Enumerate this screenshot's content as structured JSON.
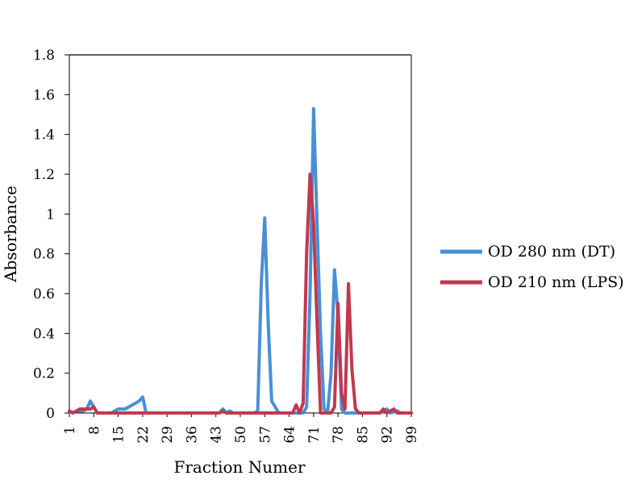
{
  "chart_data": {
    "type": "line",
    "title": "",
    "xlabel": "Fraction Numer",
    "ylabel": "Absorbance",
    "xlim": [
      1,
      99
    ],
    "ylim": [
      0,
      1.8
    ],
    "grid": false,
    "legend_position": "right",
    "x_ticks": [
      "1",
      "8",
      "15",
      "22",
      "29",
      "36",
      "43",
      "50",
      "57",
      "64",
      "71",
      "78",
      "85",
      "92",
      "99"
    ],
    "y_ticks": [
      "0",
      "0.2",
      "0.4",
      "0.6",
      "0.8",
      "1",
      "1.2",
      "1.4",
      "1.6",
      "1.8"
    ],
    "series": [
      {
        "name": "OD 280 nm (DT)",
        "color": "#4a8fd6",
        "points": [
          [
            1,
            0.01
          ],
          [
            2,
            0
          ],
          [
            3,
            0.01
          ],
          [
            4,
            0.01
          ],
          [
            5,
            0.01
          ],
          [
            6,
            0.02
          ],
          [
            7,
            0.06
          ],
          [
            8,
            0.03
          ],
          [
            9,
            0
          ],
          [
            10,
            0
          ],
          [
            11,
            0
          ],
          [
            12,
            0
          ],
          [
            13,
            0
          ],
          [
            14,
            0.01
          ],
          [
            15,
            0.02
          ],
          [
            16,
            0.02
          ],
          [
            17,
            0.02
          ],
          [
            18,
            0.03
          ],
          [
            19,
            0.04
          ],
          [
            20,
            0.05
          ],
          [
            21,
            0.06
          ],
          [
            22,
            0.08
          ],
          [
            23,
            0
          ],
          [
            24,
            0
          ],
          [
            30,
            0
          ],
          [
            40,
            0
          ],
          [
            44,
            0
          ],
          [
            45,
            0.02
          ],
          [
            46,
            0
          ],
          [
            47,
            0.01
          ],
          [
            48,
            0
          ],
          [
            54,
            0
          ],
          [
            55,
            0.01
          ],
          [
            56,
            0.65
          ],
          [
            57,
            0.98
          ],
          [
            58,
            0.45
          ],
          [
            59,
            0.06
          ],
          [
            60,
            0.03
          ],
          [
            61,
            0
          ],
          [
            68,
            0
          ],
          [
            69,
            0.03
          ],
          [
            70,
            0.6
          ],
          [
            71,
            1.53
          ],
          [
            72,
            0.95
          ],
          [
            73,
            0.4
          ],
          [
            74,
            0.02
          ],
          [
            75,
            0
          ],
          [
            76,
            0.2
          ],
          [
            77,
            0.72
          ],
          [
            78,
            0.5
          ],
          [
            79,
            0.02
          ],
          [
            80,
            0
          ],
          [
            86,
            0
          ],
          [
            90,
            0
          ],
          [
            92,
            0.02
          ],
          [
            93,
            0
          ],
          [
            95,
            0.01
          ],
          [
            96,
            0
          ],
          [
            99,
            0
          ]
        ]
      },
      {
        "name": "OD 210 nm (LPS)",
        "color": "#c0394f",
        "points": [
          [
            1,
            0.01
          ],
          [
            2,
            0
          ],
          [
            3,
            0.01
          ],
          [
            4,
            0.02
          ],
          [
            5,
            0.02
          ],
          [
            6,
            0.02
          ],
          [
            7,
            0.02
          ],
          [
            8,
            0.03
          ],
          [
            9,
            0
          ],
          [
            10,
            0
          ],
          [
            20,
            0
          ],
          [
            30,
            0
          ],
          [
            40,
            0
          ],
          [
            44,
            0
          ],
          [
            45,
            0.01
          ],
          [
            46,
            0
          ],
          [
            55,
            0
          ],
          [
            60,
            0
          ],
          [
            65,
            0
          ],
          [
            66,
            0.04
          ],
          [
            67,
            0
          ],
          [
            68,
            0.05
          ],
          [
            69,
            0.8
          ],
          [
            70,
            1.2
          ],
          [
            71,
            0.95
          ],
          [
            72,
            0.45
          ],
          [
            73,
            0
          ],
          [
            76,
            0
          ],
          [
            77,
            0.03
          ],
          [
            78,
            0.55
          ],
          [
            79,
            0.1
          ],
          [
            80,
            0.02
          ],
          [
            81,
            0.65
          ],
          [
            82,
            0.22
          ],
          [
            83,
            0.02
          ],
          [
            84,
            0
          ],
          [
            86,
            0
          ],
          [
            90,
            0
          ],
          [
            91,
            0.02
          ],
          [
            92,
            0
          ],
          [
            94,
            0.02
          ],
          [
            95,
            0
          ],
          [
            99,
            0
          ]
        ]
      }
    ]
  }
}
